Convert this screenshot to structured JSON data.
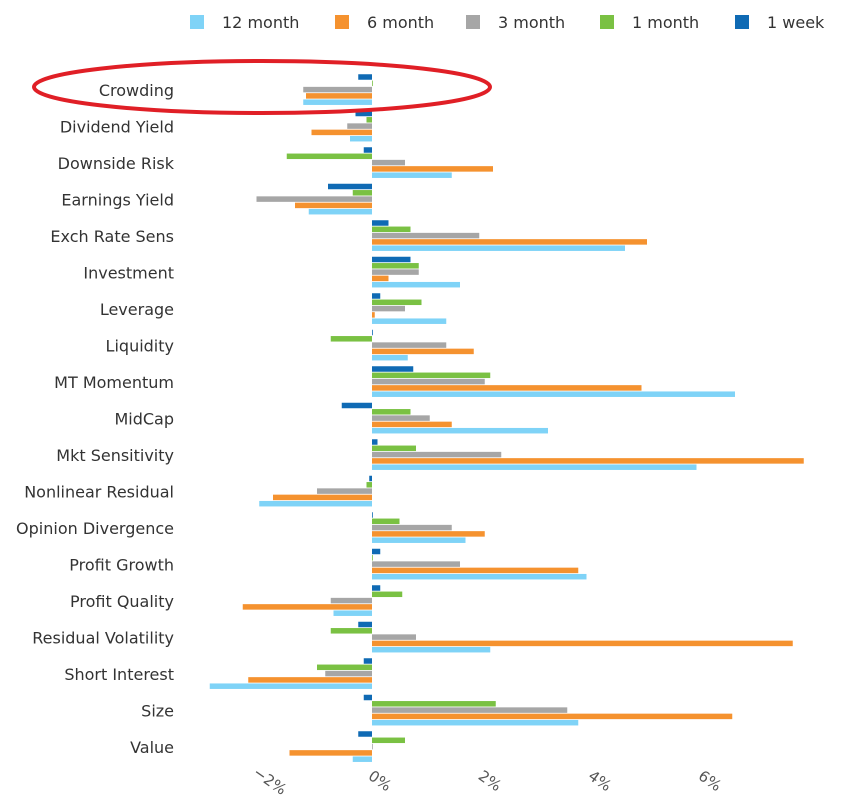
{
  "chart_data": {
    "type": "bar",
    "orientation": "horizontal",
    "categories": [
      "Crowding",
      "Dividend Yield",
      "Downside Risk",
      "Earnings Yield",
      "Exch Rate Sens",
      "Investment",
      "Leverage",
      "Liquidity",
      "MT Momentum",
      "MidCap",
      "Mkt Sensitivity",
      "Nonlinear Residual",
      "Opinion Divergence",
      "Profit Growth",
      "Profit Quality",
      "Residual Volatility",
      "Short Interest",
      "Size",
      "Value"
    ],
    "series": [
      {
        "name": "12 month",
        "color": "#7fd3f7",
        "values": [
          -1.25,
          -0.4,
          1.45,
          -1.15,
          4.6,
          1.6,
          1.35,
          0.65,
          6.6,
          3.2,
          5.9,
          -2.05,
          1.7,
          3.9,
          -0.7,
          2.15,
          -2.95,
          3.75,
          -0.35
        ]
      },
      {
        "name": "6 month",
        "color": "#f5922f",
        "values": [
          -1.2,
          -1.1,
          2.2,
          -1.4,
          5.0,
          0.3,
          0.05,
          1.85,
          4.9,
          1.45,
          7.85,
          -1.8,
          2.05,
          3.75,
          -2.35,
          7.65,
          -2.25,
          6.55,
          -1.5
        ]
      },
      {
        "name": "3 month",
        "color": "#a6a6a6",
        "values": [
          -1.25,
          -0.45,
          0.6,
          -2.1,
          1.95,
          0.85,
          0.6,
          1.35,
          2.05,
          1.05,
          2.35,
          -1.0,
          1.45,
          1.6,
          -0.75,
          0.8,
          -0.85,
          3.55,
          0.0
        ]
      },
      {
        "name": "1 month",
        "color": "#7ac143",
        "values": [
          0.0,
          -0.1,
          -1.55,
          -0.35,
          0.7,
          0.85,
          0.9,
          -0.75,
          2.15,
          0.7,
          0.8,
          -0.1,
          0.5,
          0.0,
          0.55,
          -0.75,
          -1.0,
          2.25,
          0.6
        ]
      },
      {
        "name": "1 week",
        "color": "#0f6ab4",
        "values": [
          -0.25,
          -0.3,
          -0.15,
          -0.8,
          0.3,
          0.7,
          0.15,
          0.0,
          0.75,
          -0.55,
          0.1,
          -0.05,
          0.0,
          0.15,
          0.15,
          -0.25,
          -0.15,
          -0.15,
          -0.25
        ]
      }
    ],
    "x_ticks": [
      -2,
      0,
      2,
      4,
      6
    ],
    "x_tick_labels": [
      "−2%",
      "0%",
      "2%",
      "4%",
      "6%"
    ],
    "xlim": [
      -2.85,
      7.9
    ],
    "legend": "top",
    "grid": false,
    "annotation": {
      "type": "ellipse",
      "target": "Crowding",
      "color": "#e01f26"
    }
  }
}
